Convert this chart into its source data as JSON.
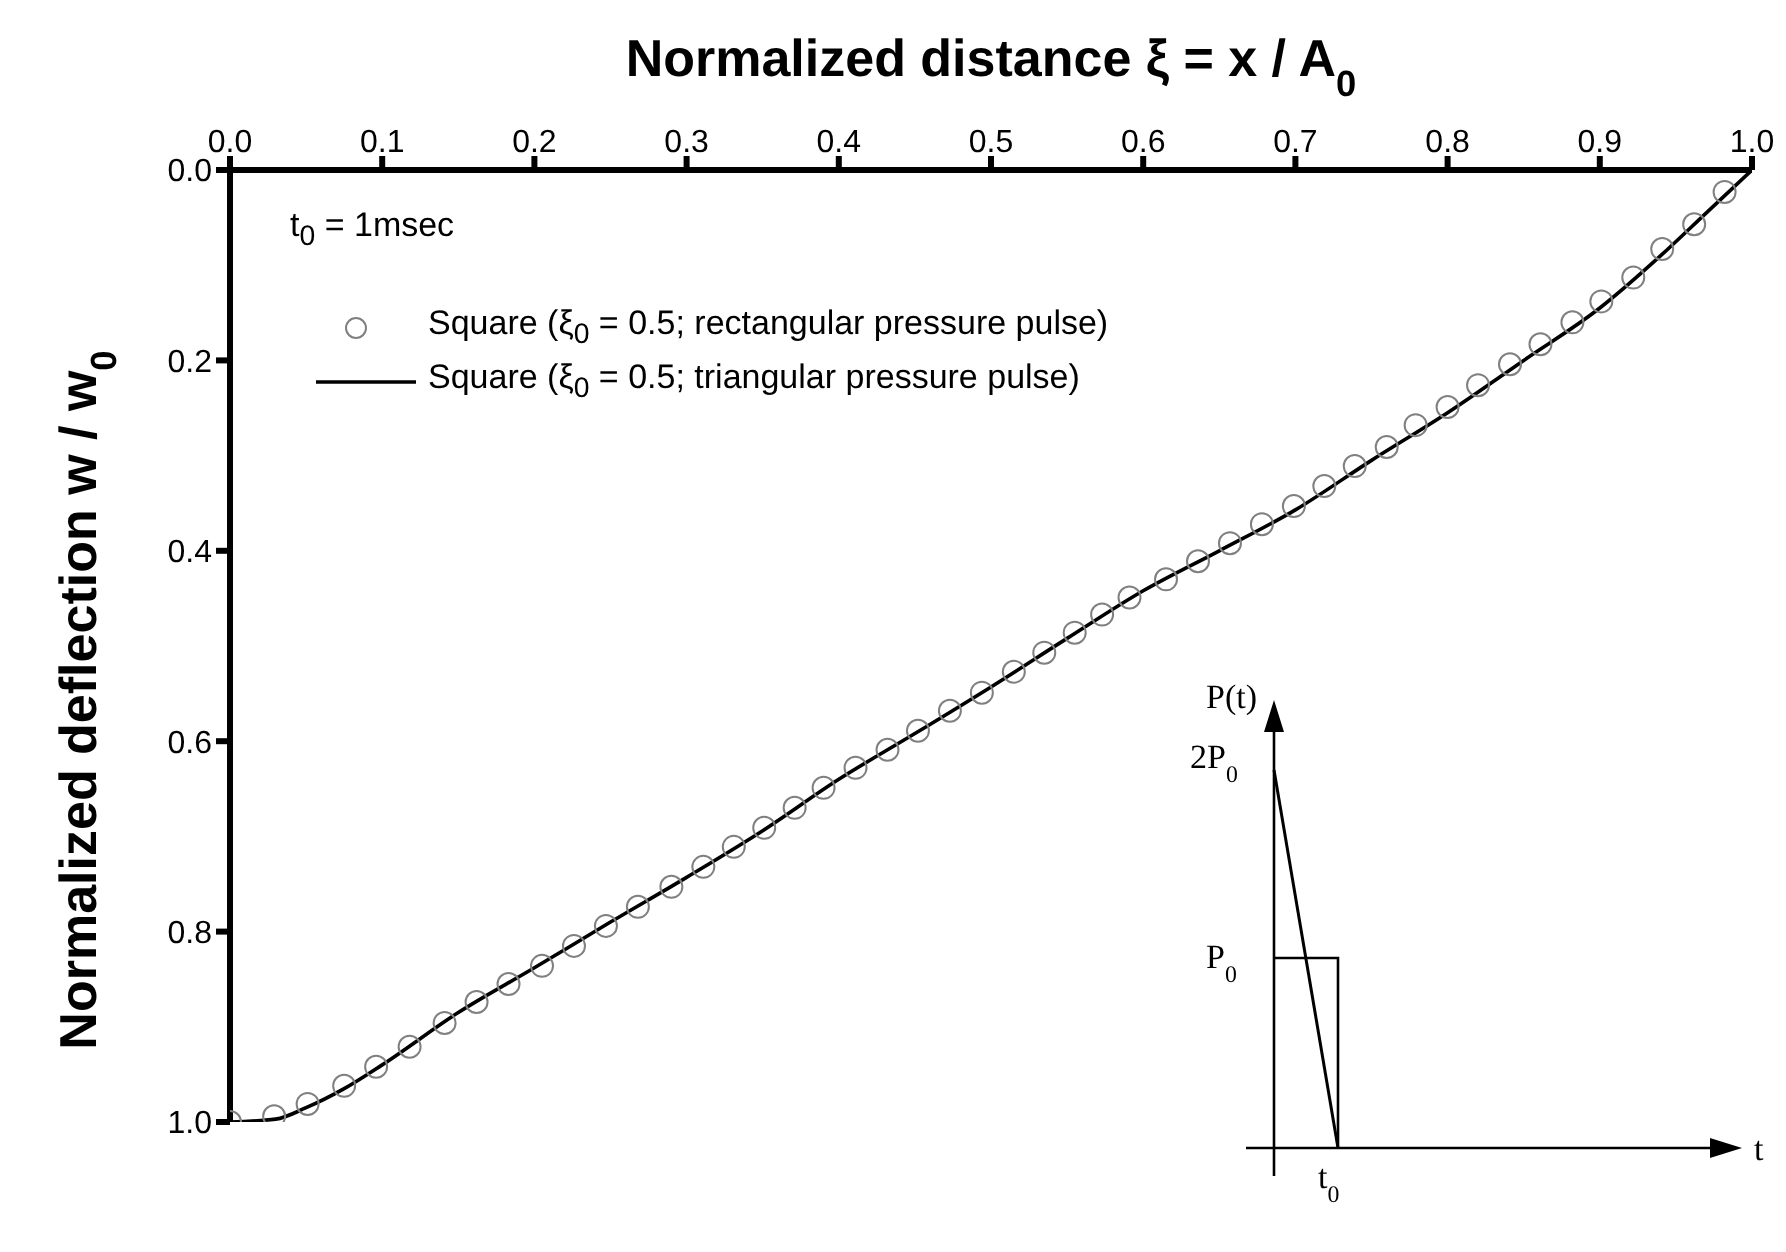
{
  "chart_data": {
    "type": "line",
    "xlabel": "Normalized distance ξ = x / A$_{0}$",
    "ylabel": "Normalized deflection w / w$_{0}$",
    "xlim": [
      0,
      1
    ],
    "ylim": [
      1,
      0
    ],
    "xticks": [
      {
        "value": 0,
        "label": "0.0"
      },
      {
        "value": 0.1,
        "label": "0.1"
      },
      {
        "value": 0.2,
        "label": "0.2"
      },
      {
        "value": 0.3,
        "label": "0.3"
      },
      {
        "value": 0.4,
        "label": "0.4"
      },
      {
        "value": 0.5,
        "label": "0.5"
      },
      {
        "value": 0.6,
        "label": "0.6"
      },
      {
        "value": 0.7,
        "label": "0.7"
      },
      {
        "value": 0.8,
        "label": "0.8"
      },
      {
        "value": 0.9,
        "label": "0.9"
      },
      {
        "value": 1,
        "label": "1.0"
      }
    ],
    "yticks": [
      {
        "value": 0,
        "label": "0.0"
      },
      {
        "value": 0.2,
        "label": "0.2"
      },
      {
        "value": 0.4,
        "label": "0.4"
      },
      {
        "value": 0.6,
        "label": "0.6"
      },
      {
        "value": 0.8,
        "label": "0.8"
      },
      {
        "value": 1,
        "label": "1.0"
      }
    ],
    "legend": "top left",
    "grid": false,
    "annotations": [
      "t$_{0}$ = 1msec",
      "P(t)",
      "2P$_{0}$",
      "P$_{0}$",
      "t$_{0}$",
      "t"
    ],
    "series": [
      {
        "name": "Square  (ξ$_{0}$ = 0.5; rectangular pressure pulse)",
        "type": "scatter",
        "marker": "circle",
        "color": "#808080",
        "x": [
          0,
          0.029,
          0.051,
          0.075,
          0.096,
          0.118,
          0.141,
          0.162,
          0.183,
          0.205,
          0.226,
          0.247,
          0.268,
          0.29,
          0.311,
          0.331,
          0.351,
          0.371,
          0.39,
          0.411,
          0.432,
          0.452,
          0.473,
          0.494,
          0.515,
          0.535,
          0.555,
          0.573,
          0.591,
          0.615,
          0.636,
          0.657,
          0.678,
          0.699,
          0.719,
          0.739,
          0.76,
          0.779,
          0.8,
          0.82,
          0.841,
          0.861,
          0.882,
          0.901,
          0.922,
          0.941,
          0.962,
          0.982
        ],
        "values": [
          1,
          0.994,
          0.981,
          0.962,
          0.942,
          0.921,
          0.896,
          0.874,
          0.855,
          0.836,
          0.815,
          0.794,
          0.774,
          0.753,
          0.732,
          0.711,
          0.691,
          0.67,
          0.649,
          0.628,
          0.609,
          0.589,
          0.568,
          0.549,
          0.527,
          0.507,
          0.486,
          0.467,
          0.449,
          0.43,
          0.411,
          0.392,
          0.372,
          0.353,
          0.332,
          0.311,
          0.291,
          0.268,
          0.249,
          0.226,
          0.204,
          0.183,
          0.16,
          0.138,
          0.113,
          0.083,
          0.057,
          0.023
        ]
      },
      {
        "name": "Square  (ξ$_{0}$ = 0.5; triangular pressure pulse)",
        "marker": "none",
        "line_style": "solid",
        "color": "#000000",
        "x": [
          0,
          0.03,
          0.05,
          0.075,
          0.1,
          0.15,
          0.2,
          0.25,
          0.3,
          0.35,
          0.4,
          0.45,
          0.5,
          0.55,
          0.6,
          0.65,
          0.7,
          0.75,
          0.8,
          0.85,
          0.9,
          0.94,
          0.97,
          1
        ],
        "values": [
          1,
          0.997,
          0.985,
          0.965,
          0.94,
          0.885,
          0.838,
          0.79,
          0.743,
          0.694,
          0.64,
          0.592,
          0.543,
          0.492,
          0.442,
          0.4,
          0.357,
          0.305,
          0.255,
          0.2,
          0.145,
          0.09,
          0.045,
          0
        ]
      }
    ]
  }
}
